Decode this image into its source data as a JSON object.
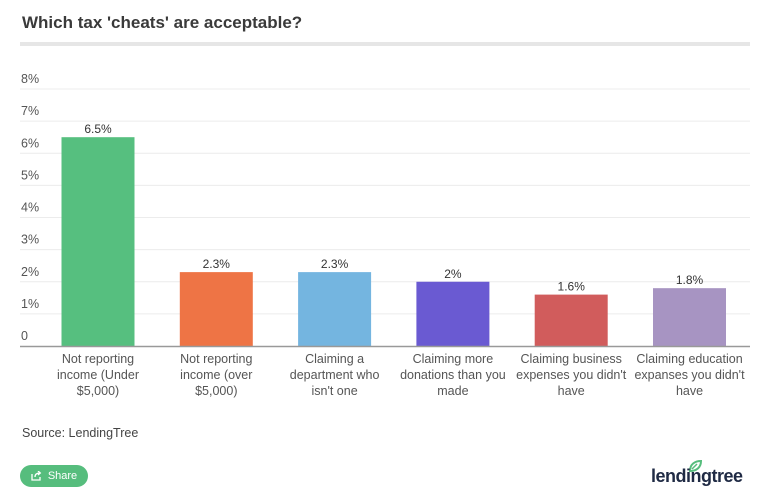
{
  "header": {
    "title": "Which tax 'cheats' are acceptable?"
  },
  "footer": {
    "source": "Source: LendingTree",
    "share_label": "Share",
    "share_icon": "share-icon",
    "logo_text": "lendingtree",
    "logo_icon": "leaf-icon"
  },
  "colors": {
    "share": "#56bd7d",
    "logo": "#1f2a44",
    "leaf": "#56bd7d"
  },
  "chart_data": {
    "type": "bar",
    "title": "Which tax 'cheats' are acceptable?",
    "xlabel": "",
    "ylabel": "",
    "ylim": [
      0,
      8
    ],
    "yticks": [
      0,
      1,
      2,
      3,
      4,
      5,
      6,
      7,
      8
    ],
    "ytick_labels": [
      "0",
      "1%",
      "2%",
      "3%",
      "4%",
      "5%",
      "6%",
      "7%",
      "8%"
    ],
    "grid": true,
    "legend": "none",
    "categories": [
      [
        "Not reporting",
        "income (Under",
        "$5,000)"
      ],
      [
        "Not reporting",
        "income (over",
        "$5,000)"
      ],
      [
        "Claiming a",
        "department who",
        "isn't one"
      ],
      [
        "Claiming more",
        "donations than you",
        "made"
      ],
      [
        "Claiming business",
        "expenses you didn't",
        "have"
      ],
      [
        "Claiming education",
        "expanses you didn't",
        "have"
      ]
    ],
    "values": [
      6.5,
      2.3,
      2.3,
      2,
      1.6,
      1.8
    ],
    "data_labels": [
      "6.5%",
      "2.3%",
      "2.3%",
      "2%",
      "1.6%",
      "1.8%"
    ],
    "bar_colors": [
      "#56bf7f",
      "#ee7445",
      "#74b5e0",
      "#6a5ad2",
      "#d15c5c",
      "#a794c2"
    ]
  }
}
